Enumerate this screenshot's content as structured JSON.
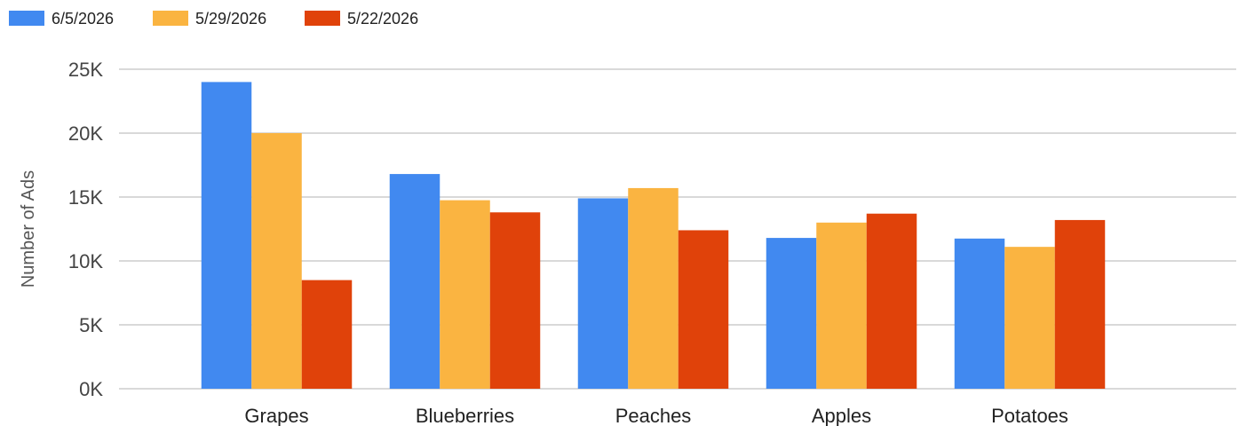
{
  "chart_data": {
    "type": "bar",
    "ylabel": "Number of Ads",
    "xlabel": "",
    "ylim": [
      0,
      25000
    ],
    "y_ticks": [
      {
        "value": 0,
        "label": "0K"
      },
      {
        "value": 5000,
        "label": "5K"
      },
      {
        "value": 10000,
        "label": "10K"
      },
      {
        "value": 15000,
        "label": "15K"
      },
      {
        "value": 20000,
        "label": "20K"
      },
      {
        "value": 25000,
        "label": "25K"
      }
    ],
    "grid": true,
    "legend_position": "top-left",
    "categories": [
      "Grapes",
      "Blueberries",
      "Peaches",
      "Apples",
      "Potatoes"
    ],
    "series": [
      {
        "name": "6/5/2026",
        "color": "#4189f0",
        "values": [
          24000,
          16800,
          14900,
          11800,
          11750
        ]
      },
      {
        "name": "5/29/2026",
        "color": "#fab441",
        "values": [
          20000,
          14750,
          15700,
          13000,
          11100
        ]
      },
      {
        "name": "5/22/2026",
        "color": "#e0420a",
        "values": [
          8500,
          13800,
          12400,
          13700,
          13200
        ]
      }
    ]
  }
}
